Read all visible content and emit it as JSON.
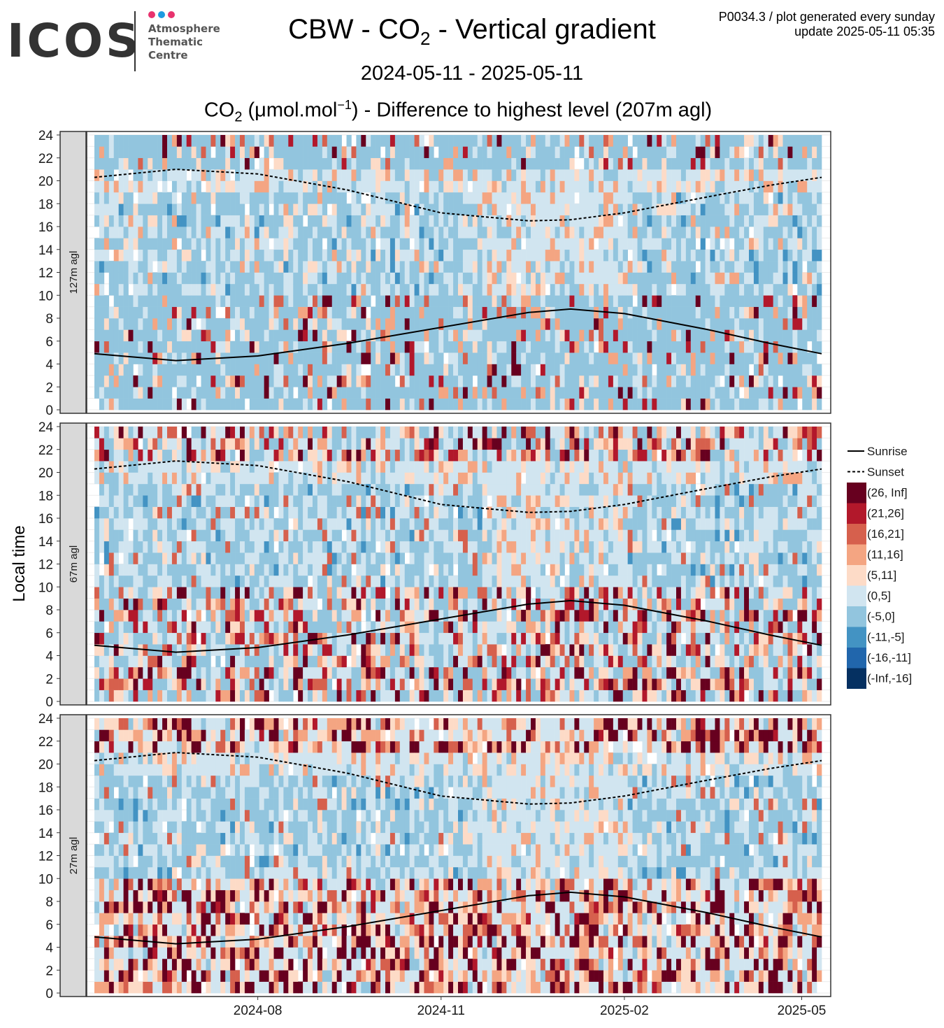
{
  "header": {
    "logo_name": "ICOS",
    "logo_lines": [
      "Atmosphere",
      "Thematic",
      "Centre"
    ],
    "title_prefix": "CBW - CO",
    "title_sub": "2",
    "title_suffix": " - Vertical gradient",
    "date_range": "2024-05-11 - 2025-05-11",
    "plot_id": "P0034.3 / plot generated every sunday",
    "update": "update  2025-05-11 05:35",
    "panel_title_prefix": "CO",
    "panel_title_sub": "2",
    "panel_title_mid": " (μmol.mol",
    "panel_title_sup": "−1",
    "panel_title_suffix": ") - Difference to highest level (207m agl)"
  },
  "colors": {
    "brand_dot_1": "#e8336e",
    "brand_dot_2": "#1e9be0",
    "brand_dot_3": "#e8336e"
  },
  "chart_data": {
    "type": "heatmap",
    "ylabel": "Local time",
    "xlim": [
      "2024-05-11",
      "2025-05-11"
    ],
    "ylim": [
      0,
      24
    ],
    "y_ticks": [
      0,
      2,
      4,
      6,
      8,
      10,
      12,
      14,
      16,
      18,
      20,
      22,
      24
    ],
    "x_ticks": [
      "2024-08",
      "2024-11",
      "2025-02",
      "2025-05"
    ],
    "grid": true,
    "legend_position": "right",
    "facets": [
      {
        "label": "127m agl",
        "typical_difference_by_hour": "daytime (-5,0] and (0,5]; night/morning mostly (0,5] with scattered (5,11] to (26, Inf]"
      },
      {
        "label": "67m agl",
        "typical_difference_by_hour": "daytime (-5,0]; night (5,11] to (26, Inf] frequent"
      },
      {
        "label": "27m agl",
        "typical_difference_by_hour": "daytime (-5,0]; night predominantly (11,16] to (26, Inf]"
      }
    ],
    "line_series": [
      {
        "name": "Sunrise",
        "style": "solid",
        "points": [
          [
            "2024-05-11",
            4.9
          ],
          [
            "2024-06-21",
            4.3
          ],
          [
            "2024-08-01",
            4.7
          ],
          [
            "2024-09-15",
            5.8
          ],
          [
            "2024-11-01",
            7.2
          ],
          [
            "2024-12-15",
            8.5
          ],
          [
            "2025-01-05",
            8.8
          ],
          [
            "2025-02-01",
            8.4
          ],
          [
            "2025-03-15",
            7.0
          ],
          [
            "2025-04-15",
            5.8
          ],
          [
            "2025-05-11",
            4.9
          ]
        ]
      },
      {
        "name": "Sunset",
        "style": "dashed",
        "points": [
          [
            "2024-05-11",
            20.3
          ],
          [
            "2024-06-21",
            21.0
          ],
          [
            "2024-08-01",
            20.6
          ],
          [
            "2024-09-15",
            19.2
          ],
          [
            "2024-11-01",
            17.2
          ],
          [
            "2024-12-15",
            16.5
          ],
          [
            "2025-01-05",
            16.6
          ],
          [
            "2025-02-01",
            17.2
          ],
          [
            "2025-03-15",
            18.6
          ],
          [
            "2025-04-15",
            19.6
          ],
          [
            "2025-05-11",
            20.3
          ]
        ]
      }
    ],
    "legend": [
      {
        "label": "Sunrise",
        "kind": "line-solid"
      },
      {
        "label": "Sunset",
        "kind": "line-dashed"
      },
      {
        "label": "(26, Inf]",
        "color": "#67001f"
      },
      {
        "label": "(21,26]",
        "color": "#b2182b"
      },
      {
        "label": "(16,21]",
        "color": "#d6604d"
      },
      {
        "label": "(11,16]",
        "color": "#f4a582"
      },
      {
        "label": "(5,11]",
        "color": "#fddbc7"
      },
      {
        "label": "(0,5]",
        "color": "#d1e5f0"
      },
      {
        "label": "(-5,0]",
        "color": "#92c5de"
      },
      {
        "label": "(-11,-5]",
        "color": "#4393c3"
      },
      {
        "label": "(-16,-11]",
        "color": "#2166ac"
      },
      {
        "label": "(-Inf,-16]",
        "color": "#053061"
      }
    ]
  }
}
